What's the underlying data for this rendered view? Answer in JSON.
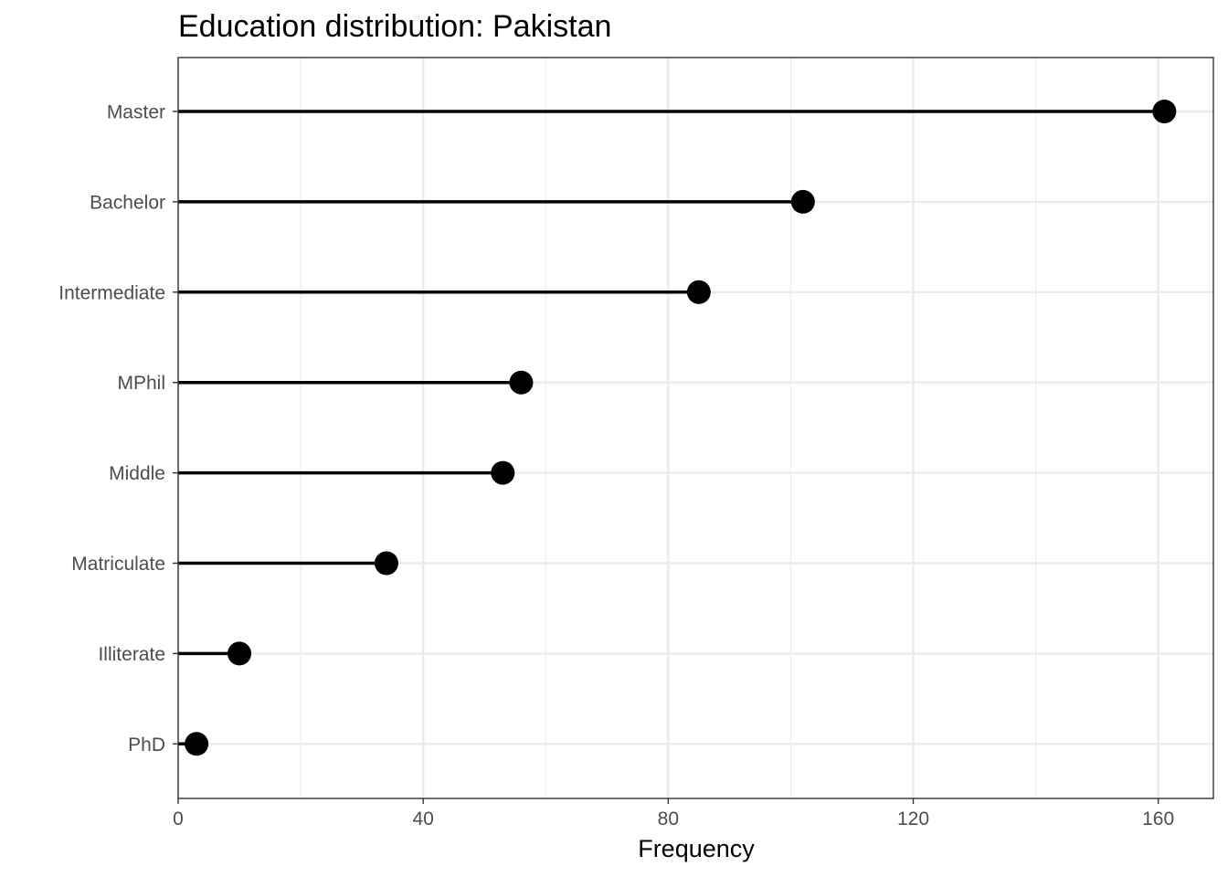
{
  "chart_data": {
    "type": "lollipop",
    "title": "Education distribution: Pakistan",
    "xlabel": "Frequency",
    "ylabel": "",
    "categories": [
      "Master",
      "Bachelor",
      "Intermediate",
      "MPhil",
      "Middle",
      "Matriculate",
      "Illiterate",
      "PhD"
    ],
    "values": [
      161,
      102,
      85,
      56,
      53,
      34,
      10,
      3
    ],
    "xlim": [
      0,
      169
    ],
    "xticks": [
      0,
      40,
      80,
      120,
      160
    ],
    "grid": true,
    "legend": "none",
    "colors": {
      "stem": "#000000",
      "point": "#000000",
      "grid": "#ebebeb",
      "panel_border": "#333333",
      "tick_text": "#4d4d4d"
    }
  }
}
